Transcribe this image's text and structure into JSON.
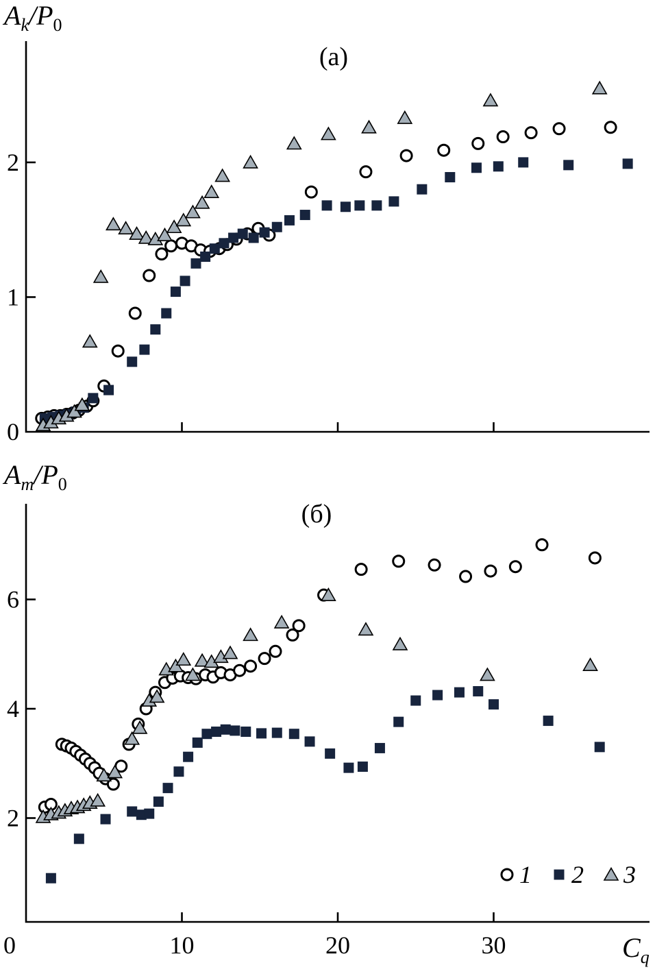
{
  "figure": {
    "background": "#ffffff",
    "axis_color": "#000000",
    "marker_style": {
      "circle_fill": "#ffffff",
      "circle_stroke": "#000000",
      "square_fill": "#17243d",
      "triangle_fill": "#a4afb8",
      "triangle_stroke": "#000000"
    },
    "legend": {
      "items": [
        {
          "marker": "circle",
          "label": "1"
        },
        {
          "marker": "square",
          "label": "2"
        },
        {
          "marker": "triangle",
          "label": "3"
        }
      ],
      "position": "bottom-right"
    }
  },
  "chart_data": [
    {
      "type": "scatter",
      "panel_label": "(а)",
      "ylabel": "A_k/P_0",
      "xlabel": "",
      "xlim": [
        0,
        40
      ],
      "ylim": [
        0,
        2.9
      ],
      "xticks": [
        10,
        20,
        30
      ],
      "show_xtick_labels": false,
      "yticks": [
        0,
        1,
        2
      ],
      "grid": false,
      "series": [
        {
          "name": "1",
          "marker": "circle",
          "points": [
            [
              1.0,
              0.1
            ],
            [
              1.4,
              0.11
            ],
            [
              1.8,
              0.12
            ],
            [
              2.2,
              0.12
            ],
            [
              2.6,
              0.13
            ],
            [
              3.0,
              0.14
            ],
            [
              3.4,
              0.16
            ],
            [
              3.9,
              0.19
            ],
            [
              4.3,
              0.23
            ],
            [
              5.0,
              0.34
            ],
            [
              5.9,
              0.6
            ],
            [
              7.0,
              0.88
            ],
            [
              7.9,
              1.16
            ],
            [
              8.7,
              1.32
            ],
            [
              9.3,
              1.38
            ],
            [
              10.0,
              1.4
            ],
            [
              10.6,
              1.38
            ],
            [
              11.2,
              1.35
            ],
            [
              11.8,
              1.34
            ],
            [
              12.4,
              1.36
            ],
            [
              12.9,
              1.39
            ],
            [
              13.5,
              1.43
            ],
            [
              14.2,
              1.47
            ],
            [
              14.9,
              1.51
            ],
            [
              15.6,
              1.46
            ],
            [
              18.3,
              1.78
            ],
            [
              21.8,
              1.93
            ],
            [
              24.4,
              2.05
            ],
            [
              26.8,
              2.09
            ],
            [
              29.0,
              2.14
            ],
            [
              30.6,
              2.19
            ],
            [
              32.4,
              2.22
            ],
            [
              34.2,
              2.25
            ],
            [
              37.5,
              2.26
            ]
          ]
        },
        {
          "name": "2",
          "marker": "square",
          "points": [
            [
              1.2,
              0.1
            ],
            [
              1.7,
              0.11
            ],
            [
              2.2,
              0.12
            ],
            [
              2.7,
              0.13
            ],
            [
              3.2,
              0.15
            ],
            [
              3.7,
              0.18
            ],
            [
              4.3,
              0.25
            ],
            [
              5.3,
              0.31
            ],
            [
              6.8,
              0.52
            ],
            [
              7.6,
              0.61
            ],
            [
              8.3,
              0.76
            ],
            [
              9.0,
              0.88
            ],
            [
              9.6,
              1.04
            ],
            [
              10.2,
              1.12
            ],
            [
              10.9,
              1.25
            ],
            [
              11.5,
              1.3
            ],
            [
              12.1,
              1.36
            ],
            [
              12.7,
              1.4
            ],
            [
              13.3,
              1.44
            ],
            [
              13.9,
              1.47
            ],
            [
              14.6,
              1.44
            ],
            [
              15.3,
              1.48
            ],
            [
              16.1,
              1.52
            ],
            [
              16.9,
              1.57
            ],
            [
              17.9,
              1.61
            ],
            [
              19.3,
              1.68
            ],
            [
              20.5,
              1.67
            ],
            [
              21.4,
              1.68
            ],
            [
              22.5,
              1.68
            ],
            [
              23.6,
              1.71
            ],
            [
              25.4,
              1.8
            ],
            [
              27.2,
              1.89
            ],
            [
              28.9,
              1.96
            ],
            [
              30.3,
              1.97
            ],
            [
              31.9,
              2.0
            ],
            [
              34.8,
              1.98
            ],
            [
              38.6,
              1.99
            ]
          ]
        },
        {
          "name": "3",
          "marker": "triangle",
          "points": [
            [
              1.1,
              0.05
            ],
            [
              1.6,
              0.07
            ],
            [
              2.1,
              0.1
            ],
            [
              2.6,
              0.12
            ],
            [
              3.1,
              0.15
            ],
            [
              3.6,
              0.2
            ],
            [
              4.1,
              0.67
            ],
            [
              4.8,
              1.15
            ],
            [
              5.6,
              1.54
            ],
            [
              6.4,
              1.51
            ],
            [
              7.1,
              1.47
            ],
            [
              7.7,
              1.44
            ],
            [
              8.3,
              1.43
            ],
            [
              8.9,
              1.46
            ],
            [
              9.5,
              1.52
            ],
            [
              10.1,
              1.57
            ],
            [
              10.7,
              1.63
            ],
            [
              11.3,
              1.7
            ],
            [
              11.9,
              1.78
            ],
            [
              12.6,
              1.9
            ],
            [
              14.4,
              2.0
            ],
            [
              17.2,
              2.14
            ],
            [
              19.4,
              2.21
            ],
            [
              22.0,
              2.26
            ],
            [
              24.3,
              2.33
            ],
            [
              29.8,
              2.46
            ],
            [
              36.8,
              2.55
            ]
          ]
        }
      ]
    },
    {
      "type": "scatter",
      "panel_label": "(б)",
      "ylabel": "A_m/P_0",
      "xlabel": "C_q",
      "xlim": [
        0,
        40
      ],
      "ylim": [
        0.1,
        7.75
      ],
      "xticks": [
        0,
        10,
        20,
        30
      ],
      "show_xtick_labels": true,
      "yticks": [
        2,
        4,
        6
      ],
      "grid": false,
      "series": [
        {
          "name": "1",
          "marker": "circle",
          "points": [
            [
              1.2,
              2.2
            ],
            [
              1.6,
              2.25
            ],
            [
              2.3,
              3.35
            ],
            [
              2.6,
              3.32
            ],
            [
              2.9,
              3.28
            ],
            [
              3.2,
              3.22
            ],
            [
              3.5,
              3.15
            ],
            [
              3.8,
              3.08
            ],
            [
              4.1,
              3.0
            ],
            [
              4.4,
              2.92
            ],
            [
              4.7,
              2.82
            ],
            [
              5.1,
              2.72
            ],
            [
              5.6,
              2.62
            ],
            [
              6.1,
              2.95
            ],
            [
              6.6,
              3.35
            ],
            [
              7.2,
              3.72
            ],
            [
              7.7,
              4.0
            ],
            [
              8.3,
              4.3
            ],
            [
              8.9,
              4.48
            ],
            [
              9.4,
              4.56
            ],
            [
              9.9,
              4.6
            ],
            [
              10.4,
              4.57
            ],
            [
              10.9,
              4.55
            ],
            [
              11.5,
              4.62
            ],
            [
              12.0,
              4.58
            ],
            [
              12.5,
              4.66
            ],
            [
              13.1,
              4.62
            ],
            [
              13.7,
              4.7
            ],
            [
              14.4,
              4.78
            ],
            [
              15.3,
              4.92
            ],
            [
              16.0,
              5.05
            ],
            [
              17.1,
              5.35
            ],
            [
              17.5,
              5.52
            ],
            [
              19.1,
              6.08
            ],
            [
              21.5,
              6.55
            ],
            [
              23.9,
              6.7
            ],
            [
              26.2,
              6.63
            ],
            [
              28.2,
              6.42
            ],
            [
              29.8,
              6.52
            ],
            [
              31.4,
              6.6
            ],
            [
              33.1,
              7.0
            ],
            [
              36.5,
              6.76
            ]
          ]
        },
        {
          "name": "2",
          "marker": "square",
          "points": [
            [
              1.6,
              0.9
            ],
            [
              3.4,
              1.62
            ],
            [
              5.1,
              1.98
            ],
            [
              6.8,
              2.12
            ],
            [
              7.4,
              2.06
            ],
            [
              7.9,
              2.08
            ],
            [
              8.5,
              2.3
            ],
            [
              9.1,
              2.55
            ],
            [
              9.8,
              2.85
            ],
            [
              10.4,
              3.12
            ],
            [
              11.0,
              3.38
            ],
            [
              11.6,
              3.54
            ],
            [
              12.2,
              3.58
            ],
            [
              12.8,
              3.62
            ],
            [
              13.4,
              3.6
            ],
            [
              14.1,
              3.58
            ],
            [
              15.1,
              3.55
            ],
            [
              16.1,
              3.56
            ],
            [
              17.2,
              3.54
            ],
            [
              18.2,
              3.4
            ],
            [
              19.5,
              3.18
            ],
            [
              20.7,
              2.92
            ],
            [
              21.6,
              2.94
            ],
            [
              22.7,
              3.28
            ],
            [
              23.9,
              3.76
            ],
            [
              25.0,
              4.15
            ],
            [
              26.4,
              4.25
            ],
            [
              27.8,
              4.3
            ],
            [
              29.0,
              4.32
            ],
            [
              30.0,
              4.08
            ],
            [
              33.5,
              3.78
            ],
            [
              36.8,
              3.3
            ]
          ]
        },
        {
          "name": "3",
          "marker": "triangle",
          "points": [
            [
              1.1,
              2.02
            ],
            [
              1.6,
              2.07
            ],
            [
              2.1,
              2.1
            ],
            [
              2.5,
              2.14
            ],
            [
              2.9,
              2.18
            ],
            [
              3.3,
              2.2
            ],
            [
              3.7,
              2.24
            ],
            [
              4.1,
              2.28
            ],
            [
              4.6,
              2.32
            ],
            [
              5.0,
              2.78
            ],
            [
              5.7,
              2.84
            ],
            [
              6.8,
              3.45
            ],
            [
              7.3,
              3.65
            ],
            [
              7.9,
              4.15
            ],
            [
              8.4,
              4.22
            ],
            [
              9.0,
              4.72
            ],
            [
              9.6,
              4.78
            ],
            [
              10.1,
              4.9
            ],
            [
              10.7,
              4.62
            ],
            [
              11.3,
              4.88
            ],
            [
              11.9,
              4.86
            ],
            [
              12.5,
              4.95
            ],
            [
              13.1,
              5.02
            ],
            [
              14.4,
              5.35
            ],
            [
              16.4,
              5.58
            ],
            [
              19.4,
              6.08
            ],
            [
              21.8,
              5.45
            ],
            [
              24.0,
              5.18
            ],
            [
              29.6,
              4.62
            ],
            [
              36.2,
              4.8
            ]
          ]
        }
      ]
    }
  ]
}
